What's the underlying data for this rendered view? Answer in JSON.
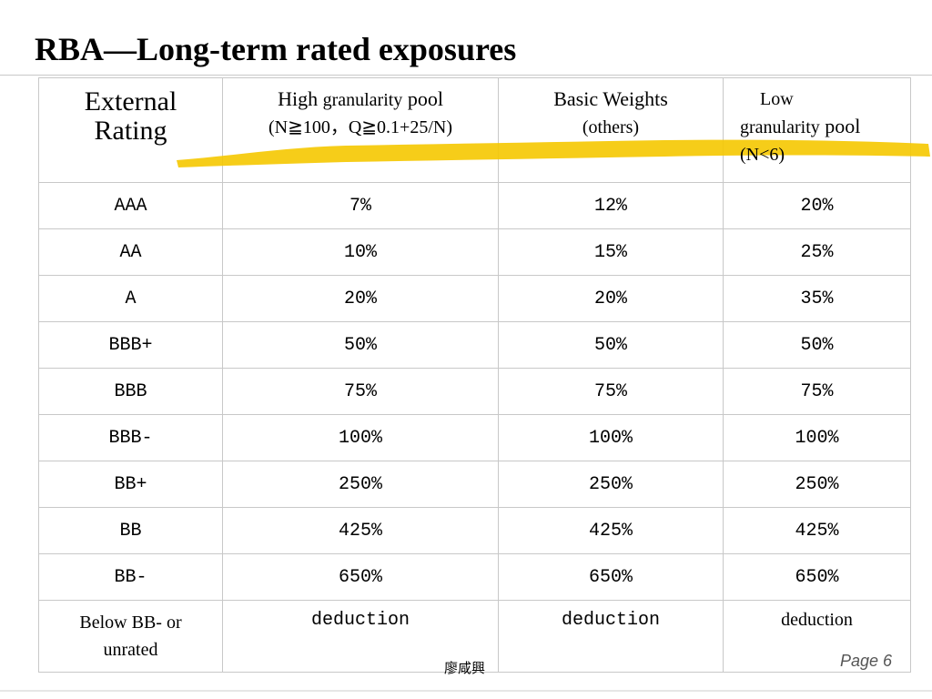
{
  "slide": {
    "title": "RBA—Long-term rated exposures",
    "author": "廖咸興",
    "page_label": "Page 6"
  },
  "colors": {
    "highlight": "#f5c800",
    "grid": "#c8c8c8",
    "page_number": "#555555"
  },
  "table": {
    "header": {
      "rating": {
        "line1": "External",
        "line2": "Rating"
      },
      "high": {
        "w1": "High ",
        "w2": "granularity",
        "w3": " pool",
        "line2": "(N≧100，Q≧0.1+25/N)"
      },
      "basic": {
        "line1": "Basic Weights",
        "line2": "(others)"
      },
      "low": {
        "line1": "Low",
        "w1": "granularity",
        "w2": " pool",
        "line3": "(N<6)"
      }
    },
    "rows": [
      {
        "rating": "AAA",
        "high": "7%",
        "basic": "12%",
        "low": "20%"
      },
      {
        "rating": "AA",
        "high": "10%",
        "basic": "15%",
        "low": "25%"
      },
      {
        "rating": "A",
        "high": "20%",
        "basic": "20%",
        "low": "35%"
      },
      {
        "rating": "BBB+",
        "high": "50%",
        "basic": "50%",
        "low": "50%"
      },
      {
        "rating": "BBB",
        "high": "75%",
        "basic": "75%",
        "low": "75%"
      },
      {
        "rating": "BBB-",
        "high": "100%",
        "basic": "100%",
        "low": "100%"
      },
      {
        "rating": "BB+",
        "high": "250%",
        "basic": "250%",
        "low": "250%"
      },
      {
        "rating": "BB",
        "high": "425%",
        "basic": "425%",
        "low": "425%"
      },
      {
        "rating": "BB-",
        "high": "650%",
        "basic": "650%",
        "low": "650%"
      }
    ],
    "last_row": {
      "rating_line1": "Below BB- or",
      "rating_line2": "unrated",
      "high": "deduction",
      "basic": "deduction",
      "low": "deduction"
    }
  }
}
